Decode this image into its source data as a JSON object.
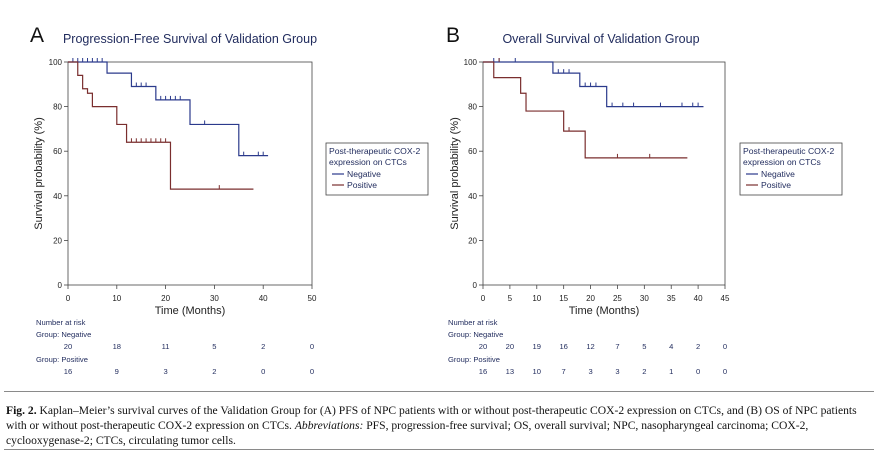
{
  "chart_data": [
    {
      "panel_letter": "A",
      "type": "line",
      "step": true,
      "title": "Progression-Free Survival of Validation Group",
      "xlabel": "Time (Months)",
      "ylabel": "Survival probability (%)",
      "xlim": [
        0,
        50
      ],
      "ylim": [
        0,
        100
      ],
      "xticks": [
        "0",
        "10",
        "20",
        "30",
        "40",
        "50"
      ],
      "yticks": [
        "0",
        "20",
        "40",
        "60",
        "80",
        "100"
      ],
      "grid": false,
      "legend_position": "right",
      "legend_title": "Post-therapeutic COX-2 expression on CTCs",
      "series": [
        {
          "name": "Negative",
          "color": "#2b3a8c",
          "steps": [
            [
              0,
              100
            ],
            [
              8,
              95
            ],
            [
              13,
              89
            ],
            [
              18,
              83
            ],
            [
              25,
              72
            ],
            [
              35,
              58
            ],
            [
              41,
              58
            ]
          ],
          "censored": [
            [
              1,
              100
            ],
            [
              2,
              100
            ],
            [
              3,
              100
            ],
            [
              4,
              100
            ],
            [
              5,
              100
            ],
            [
              6,
              100
            ],
            [
              7,
              100
            ],
            [
              14,
              89
            ],
            [
              15,
              89
            ],
            [
              16,
              89
            ],
            [
              19,
              83
            ],
            [
              20,
              83
            ],
            [
              21,
              83
            ],
            [
              22,
              83
            ],
            [
              23,
              83
            ],
            [
              28,
              72
            ],
            [
              36,
              58
            ],
            [
              39,
              58
            ],
            [
              40,
              58
            ]
          ]
        },
        {
          "name": "Positive",
          "color": "#7a2e2e",
          "steps": [
            [
              0,
              100
            ],
            [
              2,
              94
            ],
            [
              3,
              88
            ],
            [
              4,
              86
            ],
            [
              5,
              80
            ],
            [
              10,
              72
            ],
            [
              12,
              64
            ],
            [
              21,
              43
            ],
            [
              38,
              43
            ]
          ],
          "censored": [
            [
              13,
              64
            ],
            [
              14,
              64
            ],
            [
              15,
              64
            ],
            [
              16,
              64
            ],
            [
              17,
              64
            ],
            [
              18,
              64
            ],
            [
              19,
              64
            ],
            [
              20,
              64
            ],
            [
              31,
              43
            ]
          ]
        }
      ],
      "risk_table": {
        "label": "Number at risk",
        "times": [
          0,
          10,
          20,
          30,
          40,
          50
        ],
        "groups": [
          {
            "name": "Group: Negative",
            "values": [
              "20",
              "18",
              "11",
              "5",
              "2",
              "0"
            ]
          },
          {
            "name": "Group: Positive",
            "values": [
              "16",
              "9",
              "3",
              "2",
              "0",
              "0"
            ]
          }
        ]
      }
    },
    {
      "panel_letter": "B",
      "type": "line",
      "step": true,
      "title": "Overall Survival of Validation Group",
      "xlabel": "Time (Months)",
      "ylabel": "Survival probability (%)",
      "xlim": [
        0,
        45
      ],
      "ylim": [
        0,
        100
      ],
      "xticks": [
        "0",
        "5",
        "10",
        "15",
        "20",
        "25",
        "30",
        "35",
        "40",
        "45"
      ],
      "yticks": [
        "0",
        "20",
        "40",
        "60",
        "80",
        "100"
      ],
      "grid": false,
      "legend_position": "right",
      "legend_title": "Post-therapeutic COX-2 expression on CTCs",
      "series": [
        {
          "name": "Negative",
          "color": "#2b3a8c",
          "steps": [
            [
              0,
              100
            ],
            [
              13,
              95
            ],
            [
              18,
              89
            ],
            [
              23,
              80
            ],
            [
              41,
              80
            ]
          ],
          "censored": [
            [
              2,
              100
            ],
            [
              3,
              100
            ],
            [
              6,
              100
            ],
            [
              14,
              95
            ],
            [
              15,
              95
            ],
            [
              16,
              95
            ],
            [
              19,
              89
            ],
            [
              20,
              89
            ],
            [
              21,
              89
            ],
            [
              24,
              80
            ],
            [
              26,
              80
            ],
            [
              28,
              80
            ],
            [
              33,
              80
            ],
            [
              37,
              80
            ],
            [
              39,
              80
            ],
            [
              40,
              80
            ]
          ]
        },
        {
          "name": "Positive",
          "color": "#7a2e2e",
          "steps": [
            [
              0,
              100
            ],
            [
              2,
              93
            ],
            [
              7,
              86
            ],
            [
              8,
              78
            ],
            [
              15,
              69
            ],
            [
              19,
              57
            ],
            [
              38,
              57
            ]
          ],
          "censored": [
            [
              3,
              100
            ],
            [
              16,
              69
            ],
            [
              25,
              57
            ],
            [
              31,
              57
            ]
          ]
        }
      ],
      "risk_table": {
        "label": "Number at risk",
        "times": [
          0,
          5,
          10,
          15,
          20,
          25,
          30,
          35,
          40,
          45
        ],
        "groups": [
          {
            "name": "Group: Negative",
            "values": [
              "20",
              "20",
              "19",
              "16",
              "12",
              "7",
              "5",
              "4",
              "2",
              "0"
            ]
          },
          {
            "name": "Group: Positive",
            "values": [
              "16",
              "13",
              "10",
              "7",
              "3",
              "3",
              "2",
              "1",
              "0",
              "0"
            ]
          }
        ]
      }
    }
  ],
  "caption": {
    "label": "Fig. 2.",
    "text1": " Kaplan–Meier’s survival curves of the Validation Group for (A) PFS of NPC patients with or without post-therapeutic COX-2 expression on CTCs, and (B) OS of NPC patients with or without post-therapeutic COX-2 expression on CTCs. ",
    "abbr_label": "Abbreviations:",
    "text2": " PFS, progression-free survival; OS, overall survival; NPC, nasopharyngeal carcinoma; COX-2, cyclooxygenase-2; CTCs, circulating tumor cells."
  }
}
